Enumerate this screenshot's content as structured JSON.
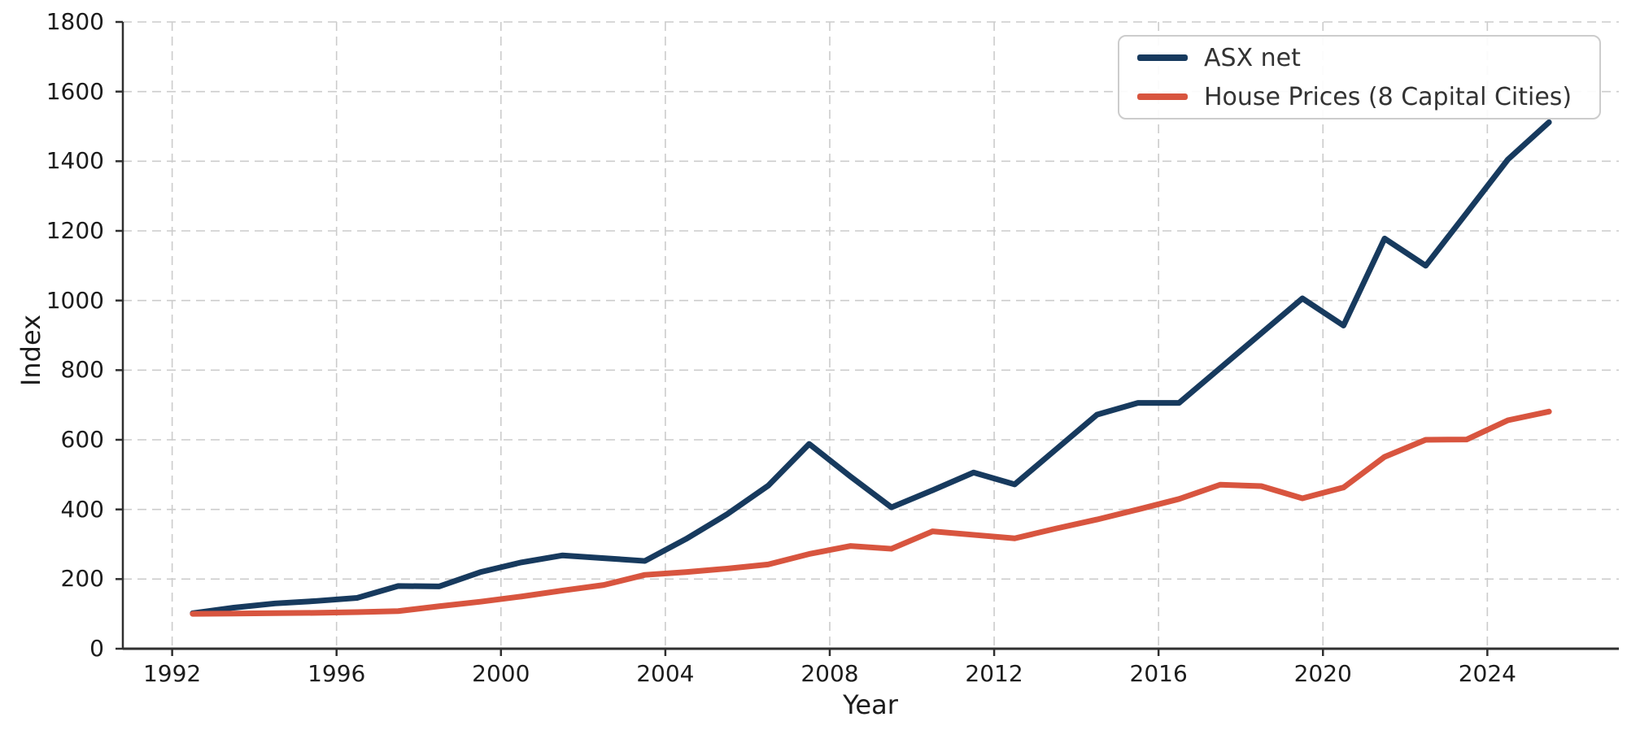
{
  "figure": {
    "background": "#ffffff",
    "grid_color": "#cccccc",
    "spine_color": "#2f2f2f",
    "text_color": "#1c1c1c"
  },
  "chart_data": {
    "type": "line",
    "title": "",
    "xlabel": "Year",
    "ylabel": "Index",
    "xlim": [
      1990.8,
      2027.2
    ],
    "ylim": [
      0,
      1800
    ],
    "x_ticks": [
      1992,
      1996,
      2000,
      2004,
      2008,
      2012,
      2016,
      2020,
      2024
    ],
    "y_ticks": [
      0,
      200,
      400,
      600,
      800,
      1000,
      1200,
      1400,
      1600,
      1800
    ],
    "grid": "dashed",
    "legend_position": "upper right",
    "x": [
      1992.5,
      1993.5,
      1994.5,
      1995.5,
      1996.5,
      1997.5,
      1998.5,
      1999.5,
      2000.5,
      2001.5,
      2002.5,
      2003.5,
      2004.5,
      2005.5,
      2006.5,
      2007.5,
      2008.5,
      2009.5,
      2010.5,
      2011.5,
      2012.5,
      2013.5,
      2014.5,
      2015.5,
      2016.5,
      2017.5,
      2018.5,
      2019.5,
      2020.5,
      2021.5,
      2022.5,
      2023.5,
      2024.5,
      2025.5
    ],
    "series": [
      {
        "name": "ASX net",
        "color": "#173A5E",
        "values": [
          102,
          118,
          130,
          137,
          146,
          180,
          179,
          220,
          248,
          268,
          260,
          252,
          315,
          386,
          468,
          588,
          495,
          406,
          455,
          506,
          472,
          572,
          672,
          706,
          706,
          806,
          906,
          1006,
          928,
          1178,
          1100,
          1252,
          1405,
          1512
        ]
      },
      {
        "name": "House Prices (8 Capital Cities)",
        "color": "#D8553F",
        "values": [
          100,
          101,
          102,
          103,
          105,
          108,
          122,
          135,
          150,
          167,
          183,
          212,
          220,
          230,
          242,
          272,
          295,
          287,
          337,
          327,
          317,
          345,
          371,
          400,
          430,
          471,
          467,
          432,
          463,
          551,
          600,
          601,
          656,
          681
        ]
      }
    ]
  }
}
